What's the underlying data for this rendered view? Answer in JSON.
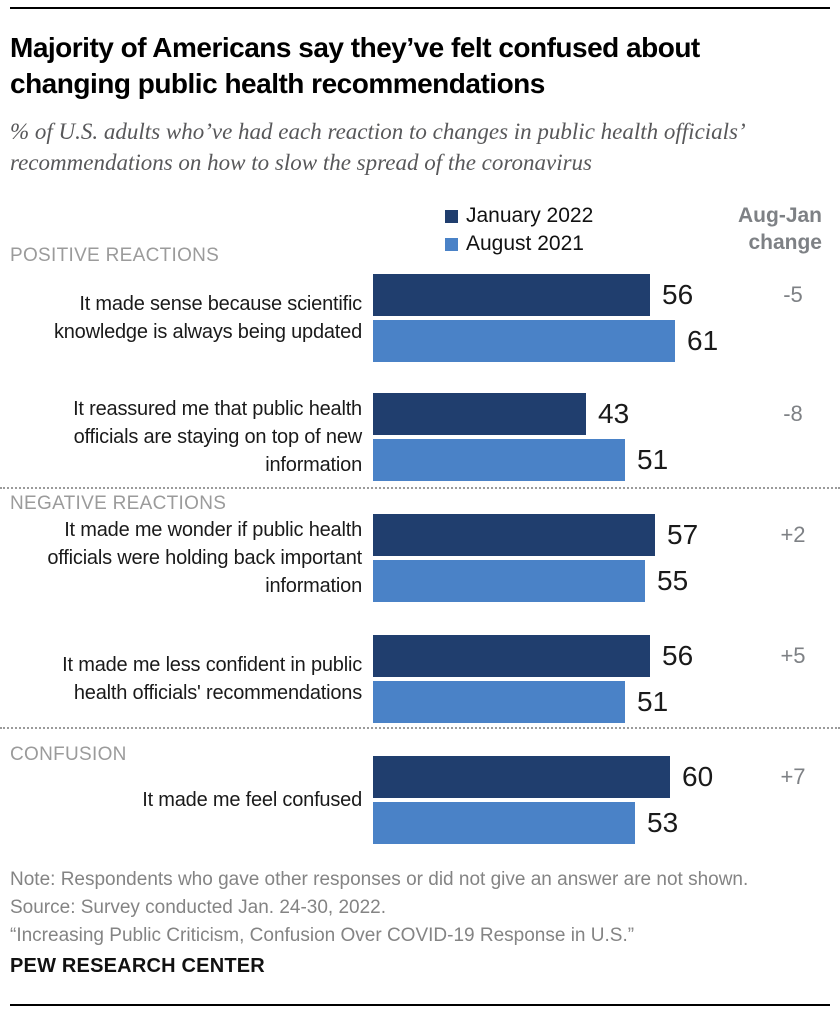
{
  "header": {
    "title": "Majority of Americans say they’ve felt confused about changing public health recommendations",
    "subtitle": "% of U.S. adults who’ve had each reaction to changes in public health officials’ recommendations on how to slow the spread of the coronavirus"
  },
  "chart_data": {
    "type": "bar",
    "orientation": "horizontal",
    "unit": "% of U.S. adults",
    "xlim": [
      0,
      70
    ],
    "legend_position": "top",
    "grid": false,
    "series": [
      {
        "name": "January 2022",
        "color": "#203E6E"
      },
      {
        "name": "August 2021",
        "color": "#4A82C7"
      }
    ],
    "change_header": "Aug-Jan\nchange",
    "groups": [
      {
        "label": "POSITIVE REACTIONS",
        "items": [
          {
            "label": "It made sense because scientific knowledge is always being updated",
            "values": [
              56,
              61
            ],
            "change": "-5"
          },
          {
            "label": "It reassured me that public health officials are staying on top of new information",
            "values": [
              43,
              51
            ],
            "change": "-8"
          }
        ]
      },
      {
        "label": "NEGATIVE REACTIONS",
        "items": [
          {
            "label": "It made me wonder if public health officials were holding back important information",
            "values": [
              57,
              55
            ],
            "change": "+2"
          },
          {
            "label": "It made me less confident in public health officials' recommendations",
            "values": [
              56,
              51
            ],
            "change": "+5"
          }
        ]
      },
      {
        "label": "CONFUSION",
        "items": [
          {
            "label": "It made me feel confused",
            "values": [
              60,
              53
            ],
            "change": "+7"
          }
        ]
      }
    ]
  },
  "footer": {
    "note": "Note: Respondents who gave other responses or did not give an answer are not shown.",
    "source": "Source: Survey conducted Jan. 24-30, 2022.",
    "quote": "“Increasing Public Criticism, Confusion Over COVID-19 Response in U.S.”",
    "brand": "PEW RESEARCH CENTER"
  }
}
